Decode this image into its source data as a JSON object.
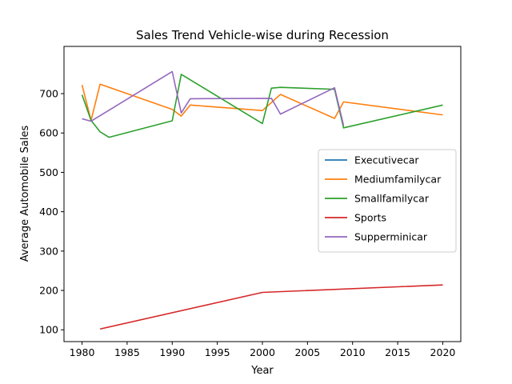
{
  "chart_data": {
    "type": "line",
    "title": "Sales Trend Vehicle-wise during Recession",
    "xlabel": "Year",
    "ylabel": "Average Automobile Sales",
    "xlim": [
      1978,
      2022
    ],
    "ylim": [
      70,
      820
    ],
    "xticks": [
      1980,
      1985,
      1990,
      1995,
      2000,
      2005,
      2010,
      2015,
      2020
    ],
    "yticks": [
      100,
      200,
      300,
      400,
      500,
      600,
      700
    ],
    "grid": false,
    "legend_position": "center-right",
    "series": [
      {
        "name": "Executivecar",
        "color": "#1f77b4",
        "points": []
      },
      {
        "name": "Mediumfamilycar",
        "color": "#ff7f0e",
        "points": [
          [
            1980,
            722
          ],
          [
            1981,
            632
          ],
          [
            1982,
            724
          ],
          [
            1990,
            660
          ],
          [
            1991,
            643
          ],
          [
            1992,
            671
          ],
          [
            2000,
            657
          ],
          [
            2002,
            698
          ],
          [
            2008,
            637
          ],
          [
            2009,
            679
          ],
          [
            2020,
            646
          ]
        ]
      },
      {
        "name": "Smallfamilycar",
        "color": "#2ca02c",
        "points": [
          [
            1980,
            697
          ],
          [
            1981,
            632
          ],
          [
            1982,
            603
          ],
          [
            1983,
            589
          ],
          [
            1990,
            631
          ],
          [
            1991,
            749
          ],
          [
            2000,
            624
          ],
          [
            2001,
            714
          ],
          [
            2002,
            716
          ],
          [
            2008,
            711
          ],
          [
            2009,
            613
          ],
          [
            2020,
            671
          ]
        ]
      },
      {
        "name": "Sports",
        "color": "#d62728",
        "points": [
          [
            1982,
            102
          ],
          [
            2000,
            195
          ],
          [
            2020,
            214
          ]
        ]
      },
      {
        "name": "Supperminicar",
        "color": "#9467bd",
        "points": [
          [
            1980,
            636
          ],
          [
            1981,
            630
          ],
          [
            1990,
            756
          ],
          [
            1991,
            651
          ],
          [
            1992,
            687
          ],
          [
            2001,
            688
          ],
          [
            2002,
            648
          ],
          [
            2008,
            715
          ],
          [
            2009,
            619
          ]
        ]
      }
    ]
  }
}
